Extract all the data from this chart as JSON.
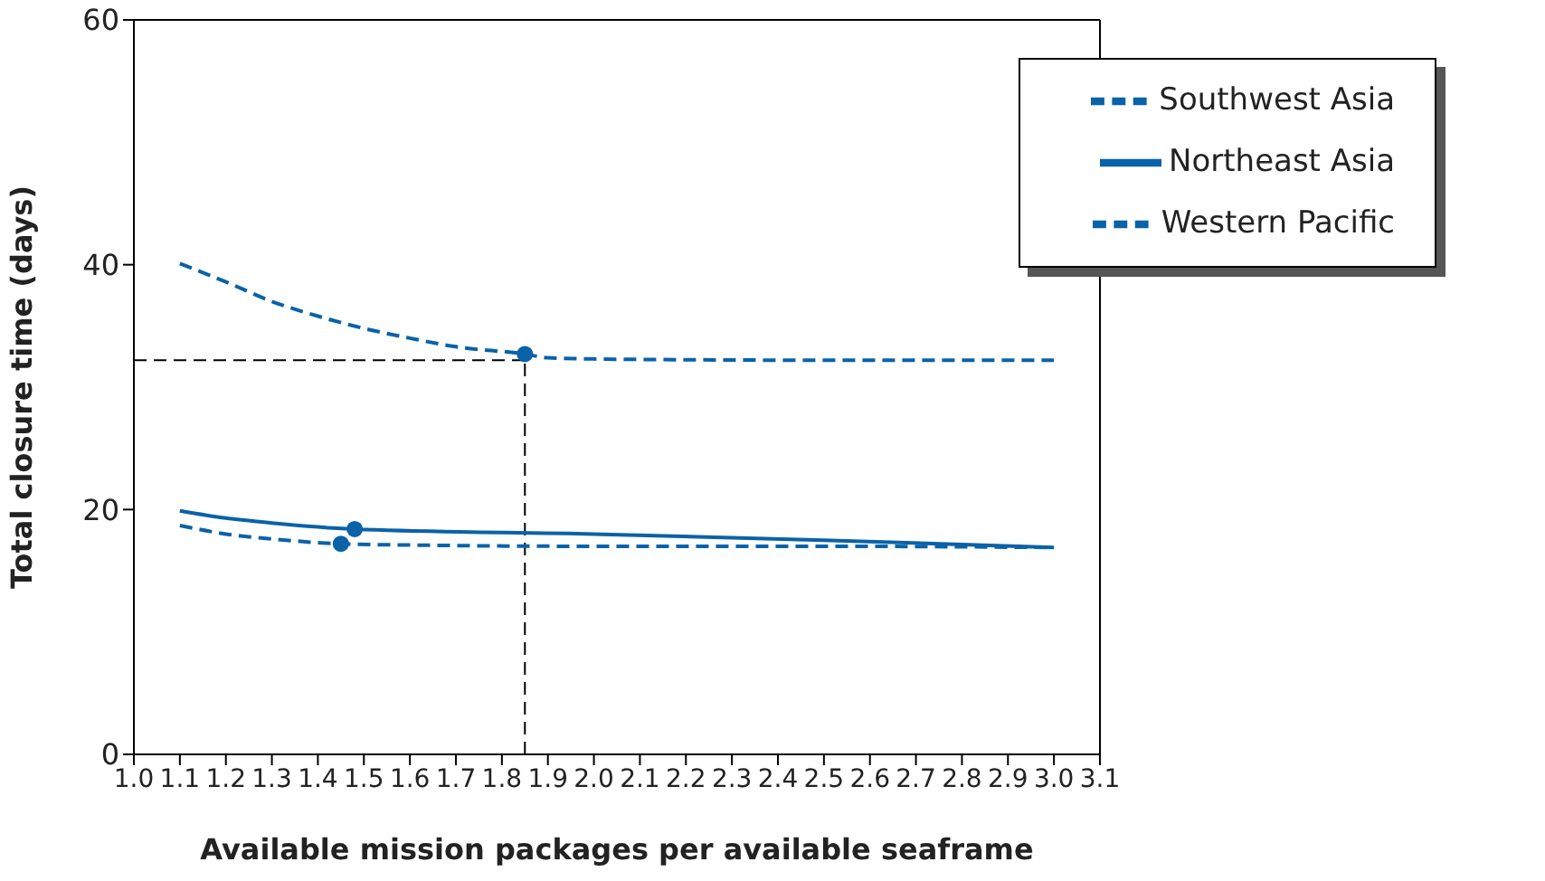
{
  "chart_data": {
    "type": "line",
    "xlabel": "Available mission packages per available seaframe",
    "ylabel": "Total closure time (days)",
    "xlim": [
      1.0,
      3.1
    ],
    "xticks": [
      {
        "value": 1,
        "label": "1.0"
      },
      1.1,
      1.2,
      1.3,
      1.4,
      1.5,
      1.6,
      1.7,
      1.8,
      1.9,
      {
        "value": 2,
        "label": "2.0"
      },
      2.1,
      2.2,
      2.3,
      2.4,
      2.5,
      2.6,
      2.7,
      2.8,
      2.9,
      {
        "value": 3,
        "label": "3.0"
      },
      3.1
    ],
    "ylim": [
      0,
      60
    ],
    "yticks": [
      0,
      20,
      40,
      60
    ],
    "grid": false,
    "legend": "top right",
    "marker": "none",
    "series": [
      {
        "name": "Southwest Asia",
        "color": "#0a62a8",
        "line_style": "dashed",
        "x": [
          1.1,
          1.2,
          1.3,
          1.45,
          1.6,
          2.0,
          2.5,
          3.0
        ],
        "values": [
          18.7,
          18.0,
          17.6,
          17.2,
          17.1,
          17.0,
          17.0,
          16.9
        ]
      },
      {
        "name": "Northeast Asia",
        "color": "#0a62a8",
        "line_style": "solid",
        "x": [
          1.1,
          1.2,
          1.3,
          1.48,
          2.0,
          2.5,
          3.0
        ],
        "values": [
          19.9,
          19.3,
          18.9,
          18.4,
          18.0,
          17.5,
          16.9
        ]
      },
      {
        "name": "Western Pacific",
        "color": "#0a62a8",
        "line_style": "dashed",
        "x": [
          1.1,
          1.2,
          1.3,
          1.4,
          1.5,
          1.6,
          1.7,
          1.85,
          1.9,
          2.0,
          2.5,
          3.0
        ],
        "values": [
          40.1,
          38.6,
          37.0,
          35.8,
          34.8,
          34.0,
          33.3,
          32.7,
          32.4,
          32.3,
          32.2,
          32.2
        ]
      },
      {
        "type": "scatter",
        "color": "#0a62a8",
        "marker": "circle",
        "x": [
          1.45,
          1.48,
          1.85
        ],
        "values": [
          17.2,
          18.4,
          32.7
        ]
      }
    ],
    "ref_lines": [
      {
        "axis": "y",
        "value": 32.2,
        "color": "#000000",
        "line_style": "dashed"
      },
      {
        "axis": "x",
        "value": 1.85,
        "color": "#000000",
        "line_style": "dashed"
      }
    ]
  }
}
